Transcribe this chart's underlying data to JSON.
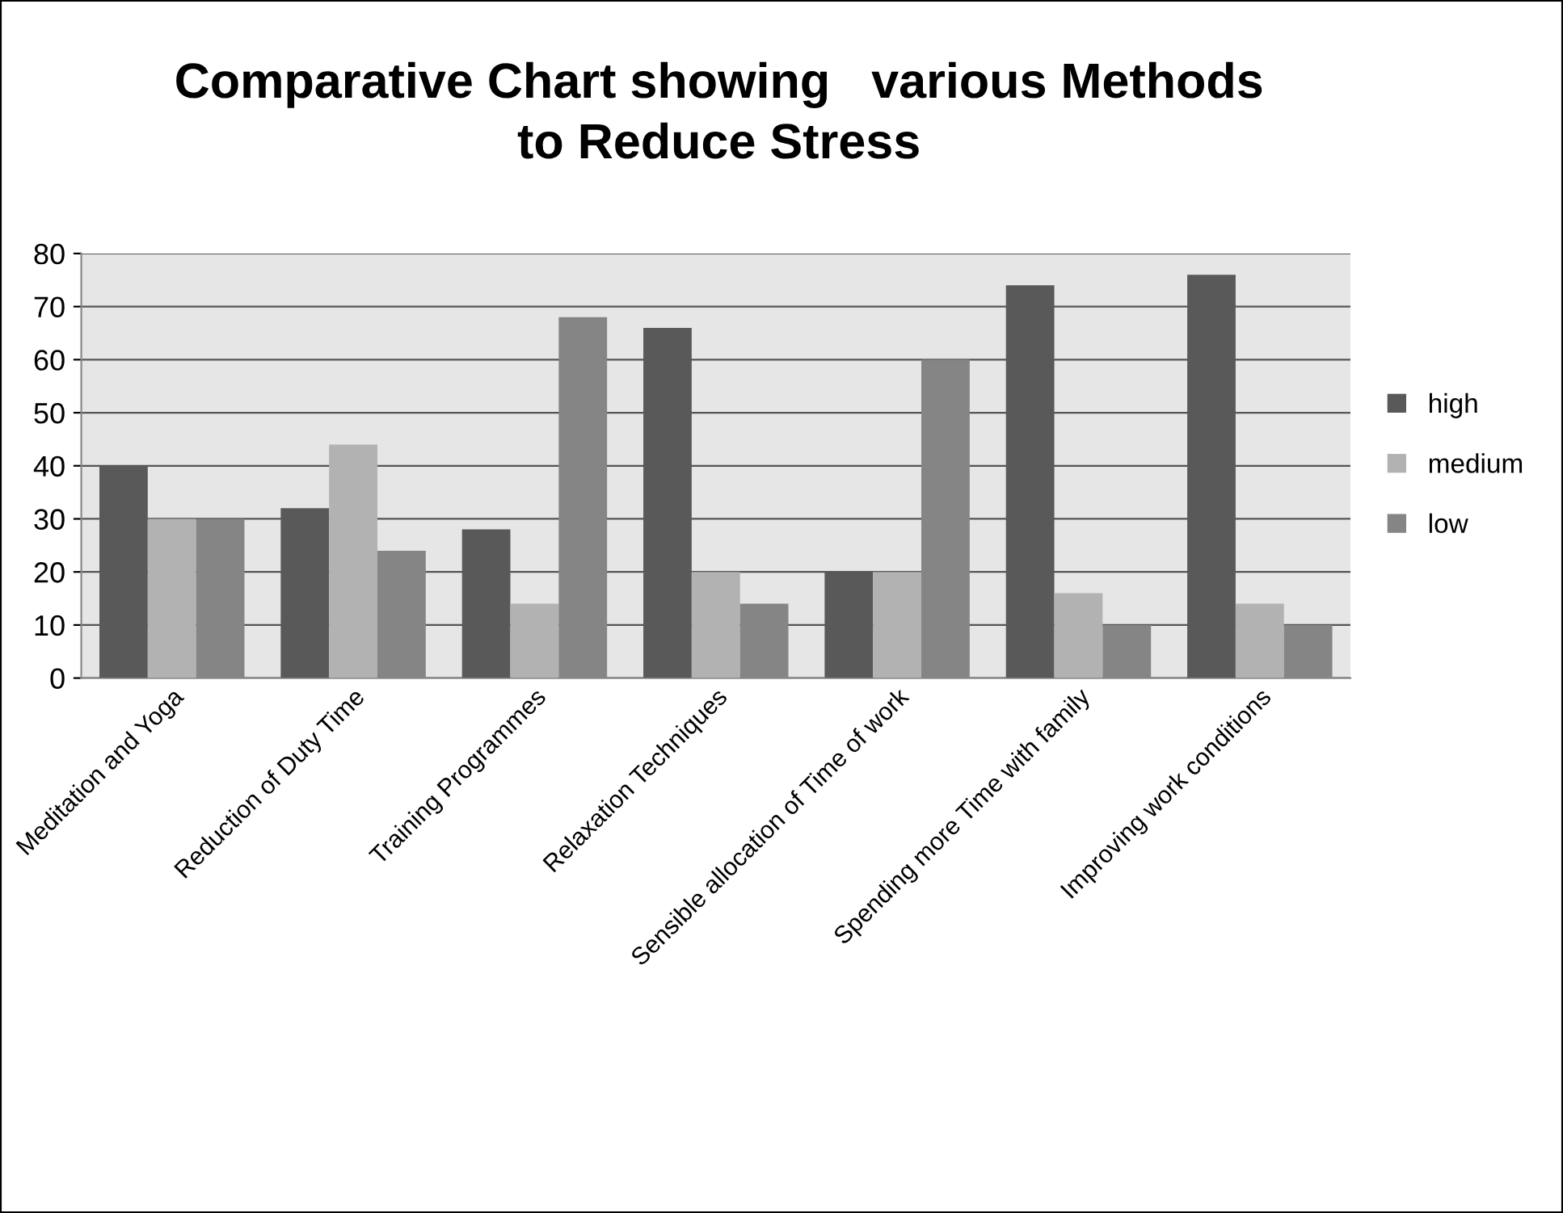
{
  "chart_data": {
    "type": "bar",
    "title": "Comparative Chart showing   various Methods\nto Reduce Stress",
    "categories": [
      "Meditation and Yoga",
      "Reduction of Duty Time",
      "Training Programmes",
      "Relaxation Techniques",
      "Sensible allocation of Time of work",
      "Spending more Time with family",
      "Improving work conditions"
    ],
    "series": [
      {
        "name": "high",
        "color": "#595959",
        "values": [
          40,
          32,
          28,
          66,
          20,
          74,
          76
        ]
      },
      {
        "name": "medium",
        "color": "#b2b2b2",
        "values": [
          30,
          44,
          14,
          20,
          20,
          16,
          14
        ]
      },
      {
        "name": "low",
        "color": "#858585",
        "values": [
          30,
          24,
          68,
          14,
          60,
          10,
          10
        ]
      }
    ],
    "ylim": [
      0,
      80
    ],
    "yticks": [
      0,
      10,
      20,
      30,
      40,
      50,
      60,
      70,
      80
    ],
    "grid": "y",
    "legend": "right"
  }
}
